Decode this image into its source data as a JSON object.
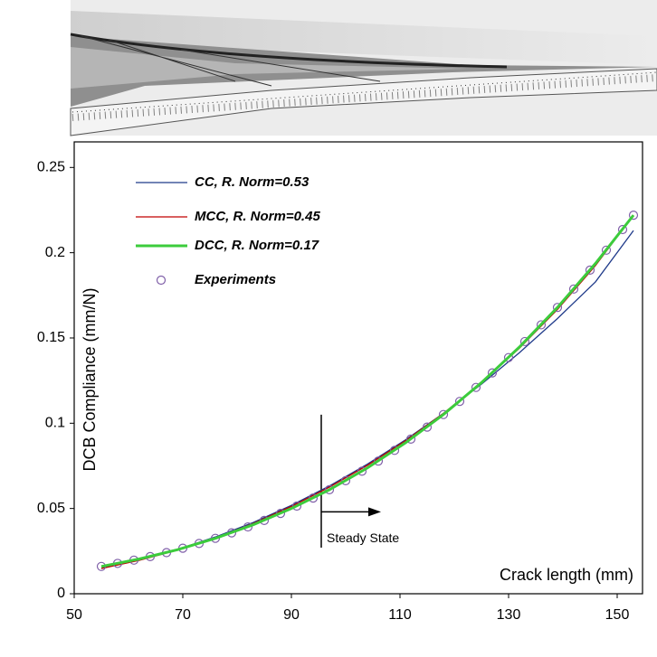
{
  "chart_data": {
    "type": "line",
    "xlabel": "Crack length (mm)",
    "ylabel": "DCB Compliance (mm/N)",
    "xlim": [
      50,
      155
    ],
    "ylim": [
      0,
      0.265
    ],
    "xticks": [
      50,
      70,
      90,
      110,
      130,
      150
    ],
    "yticks": [
      0,
      0.05,
      0.1,
      0.15,
      0.2,
      0.25
    ],
    "legend": "upper left",
    "annotation": {
      "text": "Steady State",
      "x": 95.5
    },
    "series": [
      {
        "name": "CC, R. Norm=0.53",
        "kind": "line",
        "color": "#1f3a8a",
        "text_color": "#2e5f9b",
        "width": 1.3,
        "x": [
          55,
          62,
          69,
          76,
          83,
          90,
          97,
          104,
          111,
          118,
          125,
          132,
          139,
          146,
          153
        ],
        "values": [
          0.015,
          0.0199,
          0.026,
          0.0333,
          0.0418,
          0.0518,
          0.0632,
          0.076,
          0.0902,
          0.1058,
          0.1229,
          0.1414,
          0.1614,
          0.1829,
          0.213
        ]
      },
      {
        "name": "MCC,  R. Norm=0.45",
        "kind": "line",
        "color": "#c00000",
        "text_color": "#a52a2a",
        "width": 1.3,
        "x": [
          55,
          62,
          69,
          76,
          83,
          90,
          97,
          104,
          111,
          118,
          125,
          132,
          139,
          146,
          153
        ],
        "values": [
          0.0148,
          0.0196,
          0.0256,
          0.0327,
          0.0412,
          0.0512,
          0.0625,
          0.0753,
          0.0897,
          0.1058,
          0.1238,
          0.144,
          0.1667,
          0.1925,
          0.222
        ]
      },
      {
        "name": "DCC,  R. Norm=0.17",
        "kind": "line",
        "color": "#3ccc3c",
        "text_color": "#4f6228",
        "width": 3,
        "x": [
          55,
          62,
          69,
          76,
          83,
          90,
          97,
          104,
          111,
          118,
          125,
          132,
          139,
          146,
          153
        ],
        "values": [
          0.016,
          0.0204,
          0.0258,
          0.0325,
          0.0405,
          0.05,
          0.061,
          0.0738,
          0.0885,
          0.1051,
          0.1238,
          0.1447,
          0.1679,
          0.1937,
          0.222
        ]
      },
      {
        "name": "Experiments",
        "kind": "scatter",
        "color": "#7f5fa8",
        "text_color": "#404040",
        "x": [
          55,
          58,
          61,
          64,
          67,
          70,
          73,
          76,
          79,
          82,
          85,
          88,
          91,
          94,
          97,
          100,
          103,
          106,
          109,
          112,
          115,
          118,
          121,
          124,
          127,
          130,
          133,
          136,
          139,
          142,
          145,
          148,
          151,
          153
        ],
        "values": [
          0.016,
          0.0178,
          0.0197,
          0.0218,
          0.0241,
          0.0267,
          0.0295,
          0.0325,
          0.0357,
          0.0392,
          0.043,
          0.0471,
          0.0514,
          0.0561,
          0.061,
          0.0663,
          0.0719,
          0.0778,
          0.0841,
          0.0907,
          0.0977,
          0.1051,
          0.1128,
          0.121,
          0.1295,
          0.1385,
          0.1479,
          0.1577,
          0.1679,
          0.1787,
          0.1898,
          0.2015,
          0.2136,
          0.222
        ]
      }
    ]
  }
}
